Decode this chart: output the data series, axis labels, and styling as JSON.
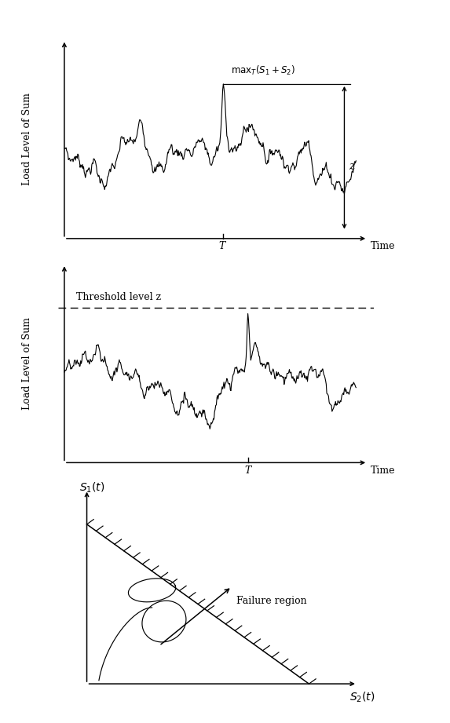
{
  "bg_color": "#ffffff",
  "panel1": {
    "ylabel": "Load Level of Sum",
    "T_label": "T",
    "time_label": "Time",
    "z_label": "z",
    "annotation": "max $_{T}$(S$_{1}$ + S$_{2}$)"
  },
  "panel2": {
    "ylabel": "Load Level of Sum",
    "T_label": "T",
    "time_label": "Time",
    "threshold_label": "Threshold level z"
  },
  "panel3": {
    "xlabel": "$S_2(t)$",
    "ylabel": "$S_1(t)$",
    "failure_label": "Failure region"
  }
}
